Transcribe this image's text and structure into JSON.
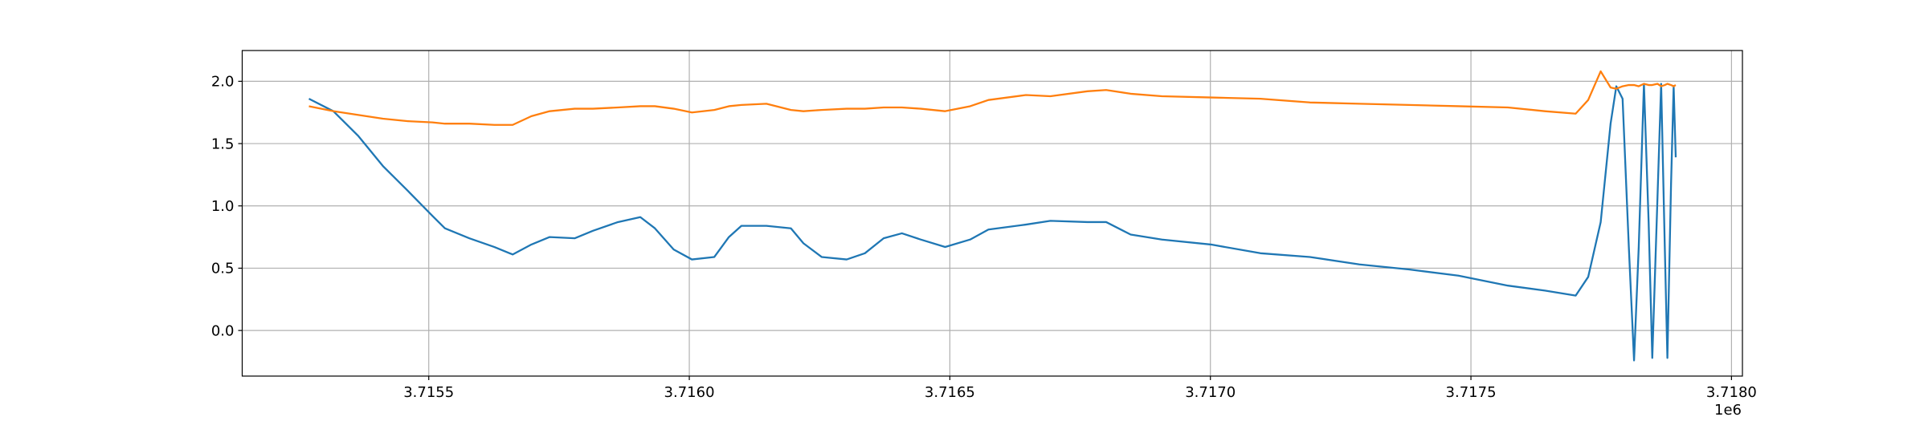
{
  "chart_data": {
    "type": "line",
    "x": [
      3715270,
      3715317,
      3715365,
      3715412,
      3715460,
      3715507,
      3715531,
      3715578,
      3715626,
      3715661,
      3715697,
      3715732,
      3715780,
      3715815,
      3715863,
      3715906,
      3715934,
      3715970,
      3716005,
      3716048,
      3716076,
      3716100,
      3716148,
      3716195,
      3716219,
      3716254,
      3716302,
      3716337,
      3716373,
      3716408,
      3716444,
      3716491,
      3716539,
      3716574,
      3716646,
      3716693,
      3716764,
      3716800,
      3716847,
      3716907,
      3717001,
      3717096,
      3717191,
      3717286,
      3717381,
      3717476,
      3717571,
      3717642,
      3717701,
      3717725,
      3717749,
      3717768,
      3717779,
      3717791,
      3717803,
      3717813,
      3717822,
      3717832,
      3717841,
      3717848,
      3717858,
      3717865,
      3717872,
      3717877,
      3717884,
      3717889,
      3717893
    ],
    "series": [
      {
        "color": "#1f77b4",
        "values": [
          1.86,
          1.76,
          1.56,
          1.32,
          1.12,
          0.92,
          0.82,
          0.74,
          0.67,
          0.61,
          0.69,
          0.75,
          0.74,
          0.8,
          0.87,
          0.91,
          0.82,
          0.65,
          0.57,
          0.59,
          0.75,
          0.84,
          0.84,
          0.82,
          0.7,
          0.59,
          0.57,
          0.62,
          0.74,
          0.78,
          0.73,
          0.67,
          0.73,
          0.81,
          0.85,
          0.88,
          0.87,
          0.87,
          0.77,
          0.73,
          0.69,
          0.62,
          0.59,
          0.53,
          0.49,
          0.44,
          0.36,
          0.32,
          0.28,
          0.43,
          0.87,
          1.66,
          1.96,
          1.86,
          0.67,
          -0.24,
          0.67,
          1.98,
          0.87,
          -0.22,
          1.07,
          1.98,
          0.67,
          -0.22,
          1.17,
          1.96,
          1.39
        ]
      },
      {
        "color": "#ff7f0e",
        "values": [
          1.8,
          1.76,
          1.73,
          1.7,
          1.68,
          1.67,
          1.66,
          1.66,
          1.65,
          1.65,
          1.72,
          1.76,
          1.78,
          1.78,
          1.79,
          1.8,
          1.8,
          1.78,
          1.75,
          1.77,
          1.8,
          1.81,
          1.82,
          1.77,
          1.76,
          1.77,
          1.78,
          1.78,
          1.79,
          1.79,
          1.78,
          1.76,
          1.8,
          1.85,
          1.89,
          1.88,
          1.92,
          1.93,
          1.9,
          1.88,
          1.87,
          1.86,
          1.83,
          1.82,
          1.81,
          1.8,
          1.79,
          1.76,
          1.74,
          1.85,
          2.08,
          1.95,
          1.94,
          1.96,
          1.97,
          1.97,
          1.96,
          1.98,
          1.97,
          1.97,
          1.98,
          1.96,
          1.97,
          1.98,
          1.97,
          1.96,
          1.97
        ]
      }
    ],
    "xlim": [
      3715142,
      3718021
    ],
    "ylim": [
      -0.366,
      2.247
    ],
    "xticks": [
      {
        "value": 3715500,
        "label": "3.7155"
      },
      {
        "value": 3716000,
        "label": "3.7160"
      },
      {
        "value": 3716500,
        "label": "3.7165"
      },
      {
        "value": 3717000,
        "label": "3.7170"
      },
      {
        "value": 3717500,
        "label": "3.7175"
      },
      {
        "value": 3718000,
        "label": "3.7180"
      }
    ],
    "yticks": [
      {
        "value": 0,
        "label": "0.0"
      },
      0.5,
      {
        "value": 1,
        "label": "1.0"
      },
      1.5,
      {
        "value": 2,
        "label": "2.0"
      }
    ],
    "x_offset_label": "1e6",
    "grid": true
  }
}
